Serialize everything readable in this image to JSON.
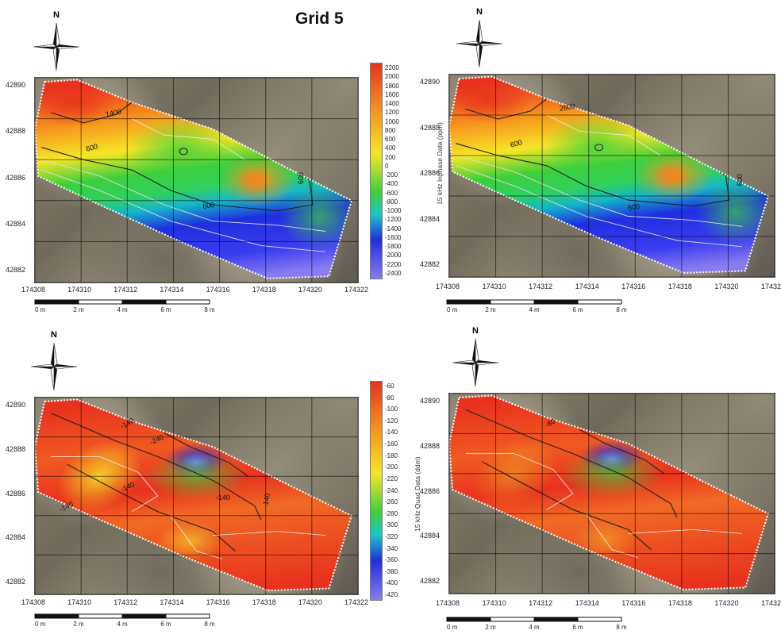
{
  "title": "Grid 5",
  "compass_letter": "N",
  "x_ticks": [
    "174308",
    "174310",
    "174312",
    "174314",
    "174316",
    "174318",
    "174320",
    "174322"
  ],
  "y_ticks": [
    "42890",
    "42888",
    "42886",
    "42884",
    "42882"
  ],
  "scale_labels": [
    "0 m",
    "2 m",
    "4 m",
    "6 m",
    "8 m"
  ],
  "colorbar_top": {
    "ticks": [
      "2200",
      "2000",
      "1800",
      "1600",
      "1400",
      "1200",
      "1000",
      "800",
      "600",
      "400",
      "200",
      "0",
      "-200",
      "-400",
      "-600",
      "-800",
      "-1000",
      "-1200",
      "-1400",
      "-1600",
      "-1800",
      "-2000",
      "-2200",
      "-2400"
    ],
    "axis_label": "15 kHz Inphase Data (ppm)"
  },
  "colorbar_bottom": {
    "ticks": [
      "-60",
      "-80",
      "-100",
      "-120",
      "-140",
      "-160",
      "-180",
      "-200",
      "-220",
      "-240",
      "-260",
      "-280",
      "-300",
      "-320",
      "-340",
      "-360",
      "-380",
      "-400",
      "-420"
    ],
    "axis_label": "15 kHz Quad Data (ddm)"
  },
  "contour_labels": {
    "top_left": [
      "1400",
      "600",
      "600",
      "600"
    ],
    "top_right": [
      "2600",
      "600",
      "600",
      "600"
    ],
    "bottom_left": [
      "-140",
      "-240",
      "-140",
      "-140",
      "-140",
      "-140"
    ],
    "bottom_right": [
      "-80"
    ]
  },
  "colors": {
    "red": "#e8321e",
    "orange": "#f7941d",
    "yellow": "#f5e625",
    "green": "#3dd03c",
    "blue": "#1f2fe0",
    "violet": "#8a7cf0"
  }
}
